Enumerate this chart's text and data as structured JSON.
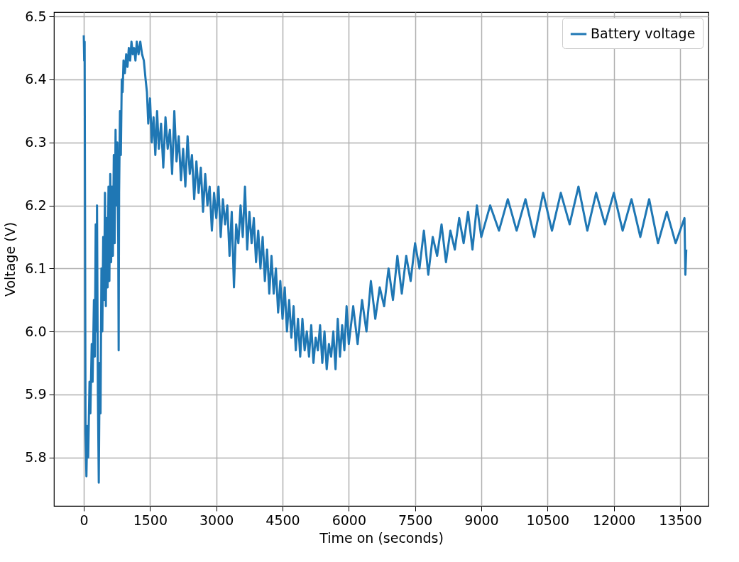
{
  "chart_data": {
    "type": "line",
    "xlabel": "Time on (seconds)",
    "ylabel": "Voltage (V)",
    "xlim": [
      -675,
      14143
    ],
    "ylim": [
      5.723,
      6.507
    ],
    "xticks": [
      0,
      1500,
      3000,
      4500,
      6000,
      7500,
      9000,
      10500,
      12000,
      13500
    ],
    "yticks": [
      5.8,
      5.9,
      {
        "value": 6,
        "label": "6.0"
      },
      6.1,
      6.2,
      6.3,
      6.4,
      6.5
    ],
    "grid": true,
    "legend": "top right",
    "x": [
      0,
      10,
      20,
      40,
      60,
      80,
      100,
      130,
      150,
      180,
      200,
      230,
      250,
      270,
      290,
      300,
      320,
      340,
      360,
      380,
      400,
      420,
      440,
      460,
      480,
      500,
      520,
      540,
      560,
      580,
      600,
      620,
      640,
      660,
      680,
      700,
      720,
      740,
      760,
      780,
      790,
      800,
      820,
      840,
      860,
      880,
      900,
      930,
      960,
      990,
      1020,
      1050,
      1080,
      1110,
      1140,
      1170,
      1200,
      1240,
      1280,
      1320,
      1360,
      1400,
      1430,
      1460,
      1500,
      1540,
      1580,
      1620,
      1660,
      1700,
      1750,
      1800,
      1850,
      1900,
      1950,
      2000,
      2050,
      2100,
      2150,
      2200,
      2250,
      2300,
      2350,
      2400,
      2450,
      2500,
      2550,
      2600,
      2650,
      2700,
      2750,
      2800,
      2850,
      2900,
      2950,
      3000,
      3050,
      3100,
      3150,
      3200,
      3250,
      3300,
      3350,
      3400,
      3450,
      3500,
      3550,
      3600,
      3650,
      3700,
      3750,
      3800,
      3850,
      3900,
      3950,
      4000,
      4050,
      4100,
      4150,
      4200,
      4250,
      4300,
      4350,
      4400,
      4450,
      4500,
      4550,
      4600,
      4650,
      4700,
      4750,
      4800,
      4850,
      4900,
      4950,
      5000,
      5050,
      5100,
      5150,
      5200,
      5250,
      5300,
      5350,
      5400,
      5450,
      5500,
      5550,
      5600,
      5650,
      5700,
      5750,
      5800,
      5850,
      5900,
      5950,
      6000,
      6100,
      6200,
      6300,
      6400,
      6500,
      6600,
      6700,
      6800,
      6900,
      7000,
      7100,
      7200,
      7300,
      7400,
      7500,
      7600,
      7700,
      7800,
      7900,
      8000,
      8100,
      8200,
      8300,
      8400,
      8500,
      8600,
      8700,
      8800,
      8900,
      9000,
      9200,
      9400,
      9600,
      9800,
      10000,
      10200,
      10400,
      10600,
      10800,
      11000,
      11200,
      11400,
      11600,
      11800,
      12000,
      12200,
      12400,
      12600,
      12800,
      13000,
      13200,
      13400,
      13600,
      13620,
      13640
    ],
    "series": [
      {
        "name": "Battery voltage",
        "color": "#1f77b4",
        "values": [
          6.47,
          6.43,
          6.46,
          5.84,
          5.77,
          5.85,
          5.8,
          5.92,
          5.87,
          5.98,
          5.92,
          6.05,
          5.96,
          6.17,
          6.0,
          6.2,
          5.9,
          5.76,
          5.95,
          5.87,
          6.1,
          6.0,
          6.15,
          6.05,
          6.22,
          6.04,
          6.18,
          6.07,
          6.23,
          6.08,
          6.25,
          6.11,
          6.23,
          6.12,
          6.28,
          6.14,
          6.32,
          6.2,
          6.3,
          6.15,
          5.97,
          6.22,
          6.35,
          6.28,
          6.4,
          6.38,
          6.43,
          6.41,
          6.44,
          6.42,
          6.45,
          6.43,
          6.46,
          6.44,
          6.45,
          6.43,
          6.46,
          6.44,
          6.46,
          6.44,
          6.43,
          6.4,
          6.38,
          6.33,
          6.37,
          6.3,
          6.34,
          6.28,
          6.35,
          6.29,
          6.33,
          6.26,
          6.34,
          6.29,
          6.32,
          6.25,
          6.35,
          6.27,
          6.31,
          6.24,
          6.29,
          6.23,
          6.31,
          6.25,
          6.28,
          6.21,
          6.27,
          6.22,
          6.26,
          6.19,
          6.25,
          6.2,
          6.23,
          6.16,
          6.22,
          6.18,
          6.23,
          6.15,
          6.21,
          6.17,
          6.2,
          6.12,
          6.19,
          6.07,
          6.17,
          6.14,
          6.2,
          6.15,
          6.23,
          6.13,
          6.19,
          6.14,
          6.18,
          6.11,
          6.16,
          6.1,
          6.15,
          6.08,
          6.13,
          6.06,
          6.12,
          6.06,
          6.1,
          6.03,
          6.08,
          6.02,
          6.07,
          6.0,
          6.05,
          5.99,
          6.04,
          5.97,
          6.02,
          5.96,
          6.02,
          5.97,
          6.0,
          5.96,
          6.01,
          5.95,
          5.99,
          5.97,
          6.01,
          5.95,
          6.0,
          5.94,
          5.98,
          5.96,
          6.0,
          5.94,
          6.02,
          5.96,
          6.01,
          5.97,
          6.04,
          5.98,
          6.04,
          5.98,
          6.05,
          6.0,
          6.08,
          6.02,
          6.07,
          6.04,
          6.1,
          6.05,
          6.12,
          6.06,
          6.12,
          6.08,
          6.14,
          6.1,
          6.16,
          6.09,
          6.15,
          6.12,
          6.17,
          6.11,
          6.16,
          6.13,
          6.18,
          6.14,
          6.19,
          6.13,
          6.2,
          6.15,
          6.2,
          6.16,
          6.21,
          6.16,
          6.21,
          6.15,
          6.22,
          6.16,
          6.22,
          6.17,
          6.23,
          6.16,
          6.22,
          6.17,
          6.22,
          6.16,
          6.21,
          6.15,
          6.21,
          6.14,
          6.19,
          6.14,
          6.18,
          6.09,
          6.13
        ]
      }
    ]
  }
}
